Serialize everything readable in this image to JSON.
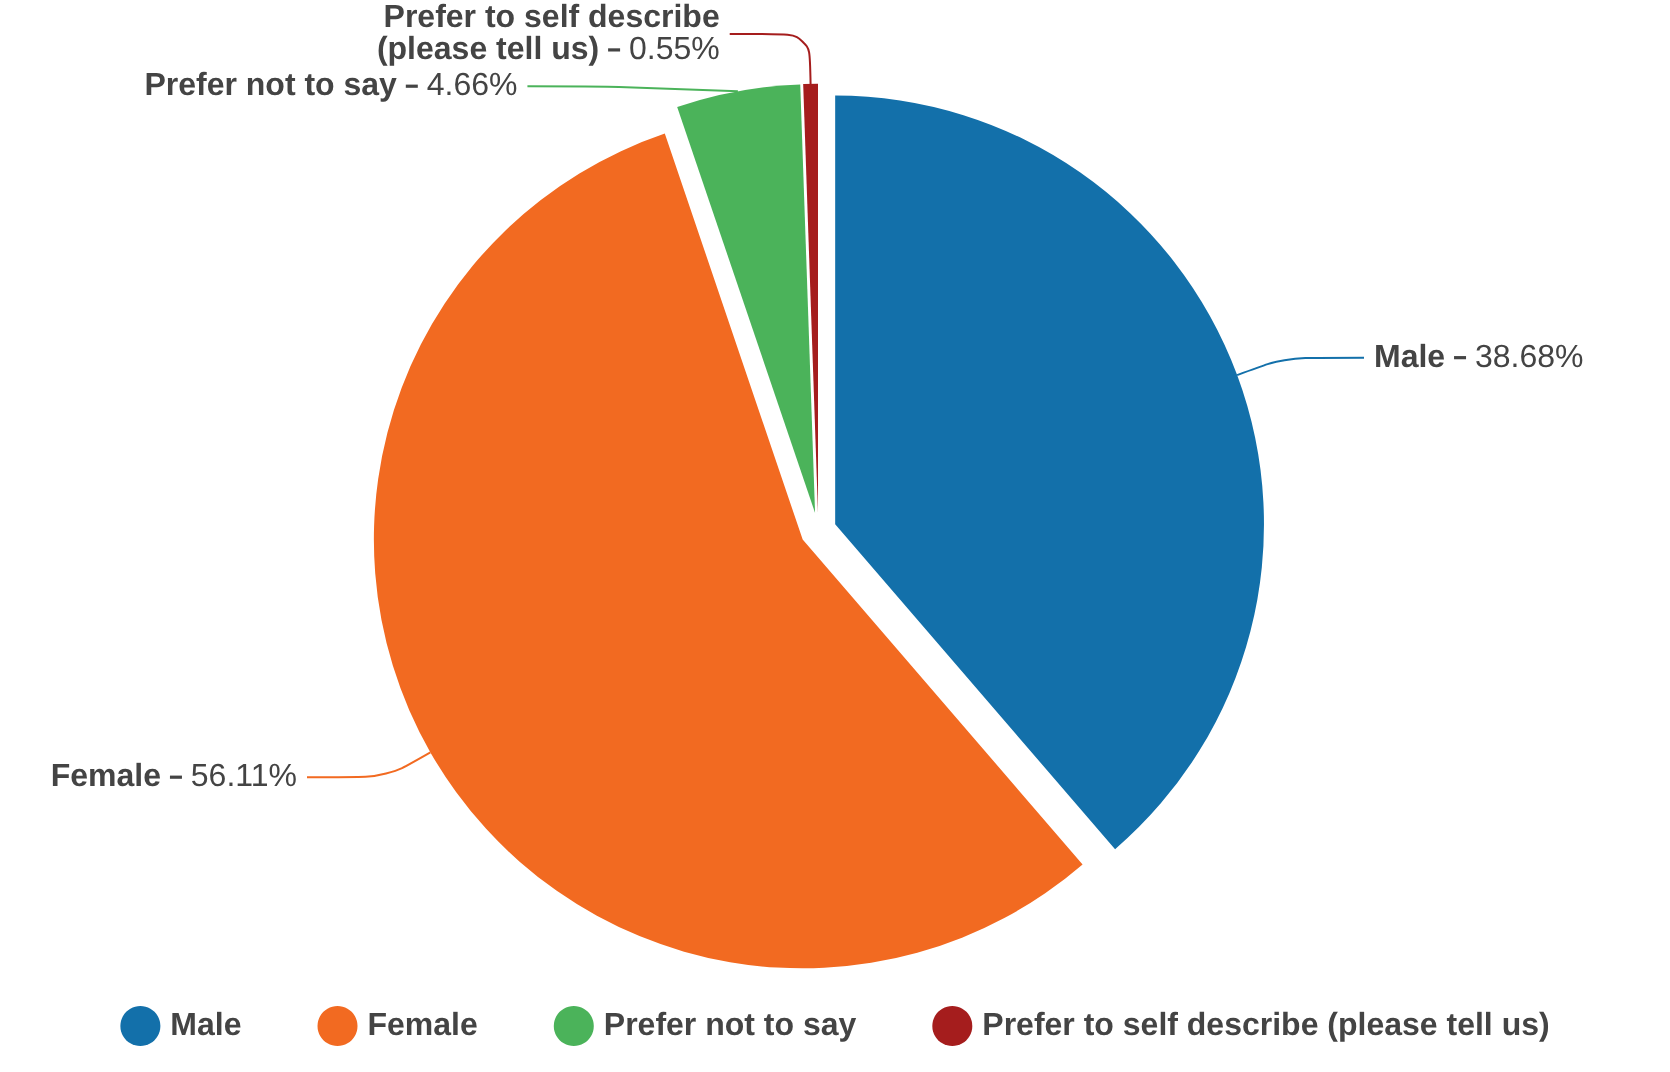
{
  "chart_data": {
    "type": "pie",
    "categories": [
      "Male",
      "Female",
      "Prefer not to say",
      "Prefer to self describe (please tell us)"
    ],
    "values": [
      38.68,
      56.11,
      4.66,
      0.55
    ],
    "colors": [
      "#1370aa",
      "#f26a21",
      "#4bb35a",
      "#a51d1d"
    ],
    "value_labels": [
      "38.68%",
      "56.11%",
      "4.66%",
      "0.55%"
    ],
    "legend": "bottom"
  }
}
